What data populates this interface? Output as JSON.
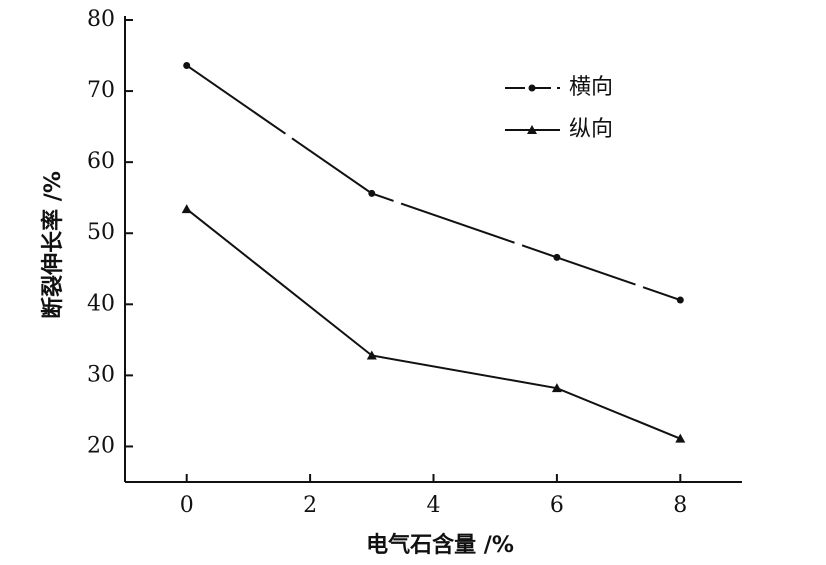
{
  "chart_data": {
    "type": "line",
    "x": [
      0,
      3,
      6,
      8
    ],
    "series": [
      {
        "name": "横向",
        "color": "#111111",
        "marker": "circle",
        "dashed": true,
        "values": [
          73.6,
          55.6,
          46.6,
          40.6
        ]
      },
      {
        "name": "纵向",
        "color": "#111111",
        "marker": "triangle",
        "dashed": false,
        "values": [
          53.4,
          32.8,
          28.2,
          21.1
        ]
      }
    ],
    "xlabel": "电气石含量 /%",
    "ylabel": "断裂伸长率 /%",
    "xlim": [
      -1,
      9
    ],
    "ylim": [
      15,
      80
    ],
    "xticks": [
      0,
      2,
      4,
      6,
      8
    ],
    "yticks": [
      20,
      30,
      40,
      50,
      60,
      70,
      80
    ],
    "legend": "upper right"
  }
}
